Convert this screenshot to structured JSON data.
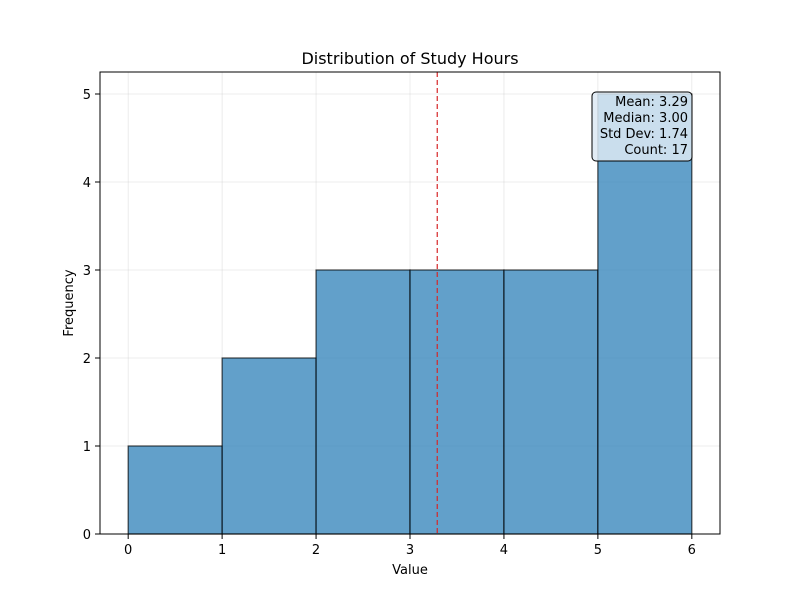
{
  "chart_data": {
    "type": "bar",
    "title": "Distribution of Study Hours",
    "xlabel": "Value",
    "ylabel": "Frequency",
    "bins": [
      {
        "start": 0,
        "end": 1,
        "count": 1
      },
      {
        "start": 1,
        "end": 2,
        "count": 2
      },
      {
        "start": 2,
        "end": 3,
        "count": 3
      },
      {
        "start": 3,
        "end": 4,
        "count": 3
      },
      {
        "start": 4,
        "end": 5,
        "count": 3
      },
      {
        "start": 5,
        "end": 6,
        "count": 5
      }
    ],
    "xlim": [
      -0.3,
      6.3
    ],
    "ylim": [
      0,
      5.25
    ],
    "xticks": [
      "0",
      "1",
      "2",
      "3",
      "4",
      "5",
      "6"
    ],
    "yticks": [
      "0",
      "1",
      "2",
      "3",
      "4",
      "5"
    ],
    "mean_line": 3.29,
    "grid": true,
    "bar_color": "#1f77b4",
    "bar_alpha": 0.7,
    "edge_color": "#000000",
    "mean_line_color": "#d62728",
    "stats_box": {
      "lines": [
        "Mean: 3.29",
        "Median: 3.00",
        "Std Dev: 1.74",
        "Count: 17"
      ],
      "background": "#dde9f3",
      "placement": "top-right"
    }
  }
}
